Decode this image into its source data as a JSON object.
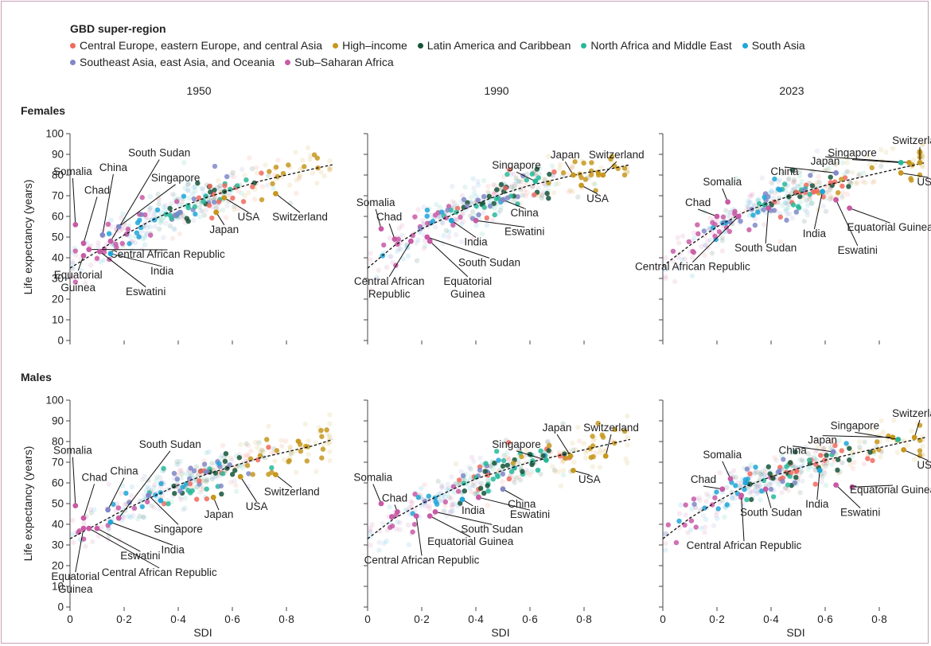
{
  "legend": {
    "title": "GBD super-region",
    "items": [
      {
        "label": "Central Europe, eastern Europe, and central Asia",
        "color": "#f06a5e"
      },
      {
        "label": "High–income",
        "color": "#c6981e"
      },
      {
        "label": "Latin America and Caribbean",
        "color": "#15553a"
      },
      {
        "label": "North Africa and Middle East",
        "color": "#28b89a"
      },
      {
        "label": "South Asia",
        "color": "#1fa6d8"
      },
      {
        "label": "Southeast Asia, east Asia, and Oceania",
        "color": "#8088c8"
      },
      {
        "label": "Sub–Saharan Africa",
        "color": "#c85aa6"
      }
    ]
  },
  "column_titles": [
    "1950",
    "1990",
    "2023"
  ],
  "row_titles": [
    "Females",
    "Males"
  ],
  "ylabel": "Life expectancy (years)",
  "xlabel": "SDI",
  "chart_data": {
    "type": "scatter",
    "xlim": [
      0,
      1
    ],
    "ylim": [
      0,
      100
    ],
    "x_ticks": [
      "0",
      "0·2",
      "0·4",
      "0·6",
      "0·8"
    ],
    "y_ticks": [
      "0",
      "10",
      "20",
      "30",
      "40",
      "50",
      "60",
      "70",
      "80",
      "90",
      "100"
    ],
    "panels": [
      {
        "sex": "Females",
        "year": "1950",
        "trend": [
          [
            0,
            35
          ],
          [
            0.1,
            43
          ],
          [
            0.2,
            51
          ],
          [
            0.3,
            58
          ],
          [
            0.4,
            64
          ],
          [
            0.5,
            69
          ],
          [
            0.6,
            73
          ],
          [
            0.7,
            77
          ],
          [
            0.8,
            80
          ],
          [
            0.9,
            83
          ],
          [
            0.97,
            85
          ]
        ],
        "points": [
          {
            "label": "Somalia",
            "x": 0.02,
            "y": 56,
            "r": 6,
            "lx": 0.01,
            "ly": 80
          },
          {
            "label": "Chad",
            "x": 0.05,
            "y": 47,
            "r": 6,
            "lx": 0.1,
            "ly": 71
          },
          {
            "label": "China",
            "x": 0.12,
            "y": 51,
            "r": 5,
            "lx": 0.16,
            "ly": 82
          },
          {
            "label": "South Sudan",
            "x": 0.15,
            "y": 48,
            "r": 6,
            "lx": 0.33,
            "ly": 89
          },
          {
            "label": "Singapore",
            "x": 0.18,
            "y": 55,
            "r": 5,
            "lx": 0.39,
            "ly": 77
          },
          {
            "label": "USA",
            "x": 0.57,
            "y": 69,
            "r": 1,
            "lx": 0.66,
            "ly": 58
          },
          {
            "label": "Switzerland",
            "x": 0.76,
            "y": 71,
            "r": 1,
            "lx": 0.85,
            "ly": 58
          },
          {
            "label": "Japan",
            "x": 0.54,
            "y": 62,
            "r": 1,
            "lx": 0.57,
            "ly": 52
          },
          {
            "label": "Central African Republic",
            "x": 0.07,
            "y": 44,
            "r": 6,
            "lx": 0.36,
            "ly": 40
          },
          {
            "label": "India",
            "x": 0.15,
            "y": 42,
            "r": 4,
            "lx": 0.34,
            "ly": 32
          },
          {
            "label": "Eswatini",
            "x": 0.11,
            "y": 43,
            "r": 6,
            "lx": 0.28,
            "ly": 22
          },
          {
            "label": "Equatorial Guinea",
            "x": 0.05,
            "y": 41,
            "r": 6,
            "lx": 0.03,
            "ly": 30
          }
        ]
      },
      {
        "sex": "Females",
        "year": "1990",
        "trend": [
          [
            0,
            35
          ],
          [
            0.1,
            46
          ],
          [
            0.2,
            54
          ],
          [
            0.3,
            60
          ],
          [
            0.4,
            66
          ],
          [
            0.5,
            71
          ],
          [
            0.6,
            75
          ],
          [
            0.7,
            78
          ],
          [
            0.8,
            81
          ],
          [
            0.9,
            83
          ],
          [
            0.97,
            85
          ]
        ],
        "points": [
          {
            "label": "Somalia",
            "x": 0.05,
            "y": 54,
            "r": 6,
            "lx": 0.03,
            "ly": 65
          },
          {
            "label": "Chad",
            "x": 0.1,
            "y": 49,
            "r": 6,
            "lx": 0.08,
            "ly": 58
          },
          {
            "label": "Singapore",
            "x": 0.62,
            "y": 77,
            "r": 3,
            "lx": 0.55,
            "ly": 83
          },
          {
            "label": "Japan",
            "x": 0.76,
            "y": 80,
            "r": 1,
            "lx": 0.73,
            "ly": 88
          },
          {
            "label": "Switzerland",
            "x": 0.87,
            "y": 80,
            "r": 1,
            "lx": 0.92,
            "ly": 88
          },
          {
            "label": "USA",
            "x": 0.79,
            "y": 75,
            "r": 1,
            "lx": 0.85,
            "ly": 67
          },
          {
            "label": "China",
            "x": 0.5,
            "y": 68,
            "r": 5,
            "lx": 0.58,
            "ly": 60
          },
          {
            "label": "Eswatini",
            "x": 0.4,
            "y": 58,
            "r": 6,
            "lx": 0.58,
            "ly": 51
          },
          {
            "label": "India",
            "x": 0.31,
            "y": 58,
            "r": 4,
            "lx": 0.4,
            "ly": 46
          },
          {
            "label": "South Sudan",
            "x": 0.22,
            "y": 50,
            "r": 6,
            "lx": 0.45,
            "ly": 36
          },
          {
            "label": "Central African Republic",
            "x": 0.16,
            "y": 48,
            "r": 6,
            "lx": 0.08,
            "ly": 27
          },
          {
            "label": "Equatorial Guinea",
            "x": 0.23,
            "y": 48,
            "r": 6,
            "lx": 0.37,
            "ly": 27
          }
        ]
      },
      {
        "sex": "Females",
        "year": "2023",
        "trend": [
          [
            0,
            36
          ],
          [
            0.1,
            46
          ],
          [
            0.2,
            55
          ],
          [
            0.3,
            62
          ],
          [
            0.4,
            67
          ],
          [
            0.5,
            71
          ],
          [
            0.6,
            75
          ],
          [
            0.7,
            78
          ],
          [
            0.8,
            81
          ],
          [
            0.9,
            84
          ],
          [
            0.97,
            86
          ]
        ],
        "points": [
          {
            "label": "Somalia",
            "x": 0.24,
            "y": 67,
            "r": 6,
            "lx": 0.22,
            "ly": 75
          },
          {
            "label": "Chad",
            "x": 0.2,
            "y": 60,
            "r": 6,
            "lx": 0.13,
            "ly": 65
          },
          {
            "label": "China",
            "x": 0.64,
            "y": 81,
            "r": 5,
            "lx": 0.45,
            "ly": 80
          },
          {
            "label": "Japan",
            "x": 0.91,
            "y": 86,
            "r": 1,
            "lx": 0.6,
            "ly": 85
          },
          {
            "label": "Singapore",
            "x": 0.88,
            "y": 86,
            "r": 3,
            "lx": 0.7,
            "ly": 89
          },
          {
            "label": "Switzerland",
            "x": 0.95,
            "y": 86,
            "r": 1,
            "lx": 0.95,
            "ly": 95
          },
          {
            "label": "USA",
            "x": 0.88,
            "y": 81,
            "r": 1,
            "lx": 0.98,
            "ly": 75
          },
          {
            "label": "India",
            "x": 0.59,
            "y": 72,
            "r": 4,
            "lx": 0.56,
            "ly": 50
          },
          {
            "label": "Equatorial Guinea",
            "x": 0.69,
            "y": 64,
            "r": 6,
            "lx": 0.84,
            "ly": 53
          },
          {
            "label": "Eswatini",
            "x": 0.64,
            "y": 68,
            "r": 6,
            "lx": 0.72,
            "ly": 42
          },
          {
            "label": "South Sudan",
            "x": 0.39,
            "y": 64,
            "r": 6,
            "lx": 0.38,
            "ly": 43
          },
          {
            "label": "Central African Republic",
            "x": 0.28,
            "y": 60,
            "r": 6,
            "lx": 0.11,
            "ly": 34
          }
        ]
      },
      {
        "sex": "Males",
        "year": "1950",
        "trend": [
          [
            0,
            33
          ],
          [
            0.1,
            40
          ],
          [
            0.2,
            47
          ],
          [
            0.3,
            53
          ],
          [
            0.4,
            59
          ],
          [
            0.5,
            64
          ],
          [
            0.6,
            68
          ],
          [
            0.7,
            72
          ],
          [
            0.8,
            75
          ],
          [
            0.9,
            78
          ],
          [
            0.97,
            81
          ]
        ],
        "points": [
          {
            "label": "Somalia",
            "x": 0.02,
            "y": 49,
            "r": 6,
            "lx": 0.01,
            "ly": 74
          },
          {
            "label": "Chad",
            "x": 0.05,
            "y": 43,
            "r": 6,
            "lx": 0.09,
            "ly": 61
          },
          {
            "label": "South Sudan",
            "x": 0.18,
            "y": 43,
            "r": 6,
            "lx": 0.37,
            "ly": 77
          },
          {
            "label": "China",
            "x": 0.14,
            "y": 47,
            "r": 5,
            "lx": 0.2,
            "ly": 64
          },
          {
            "label": "Switzerland",
            "x": 0.76,
            "y": 64,
            "r": 1,
            "lx": 0.82,
            "ly": 54
          },
          {
            "label": "USA",
            "x": 0.63,
            "y": 63,
            "r": 1,
            "lx": 0.69,
            "ly": 47
          },
          {
            "label": "Japan",
            "x": 0.53,
            "y": 53,
            "r": 1,
            "lx": 0.55,
            "ly": 43
          },
          {
            "label": "Singapore",
            "x": 0.29,
            "y": 54,
            "r": 5,
            "lx": 0.4,
            "ly": 36
          },
          {
            "label": "India",
            "x": 0.15,
            "y": 41,
            "r": 4,
            "lx": 0.38,
            "ly": 26
          },
          {
            "label": "Eswatini",
            "x": 0.1,
            "y": 38,
            "r": 6,
            "lx": 0.26,
            "ly": 23
          },
          {
            "label": "Central African Republic",
            "x": 0.07,
            "y": 38,
            "r": 6,
            "lx": 0.33,
            "ly": 15
          },
          {
            "label": "Equatorial Guinea",
            "x": 0.05,
            "y": 38,
            "r": 6,
            "lx": 0.02,
            "ly": 13
          }
        ]
      },
      {
        "sex": "Males",
        "year": "1990",
        "trend": [
          [
            0,
            33
          ],
          [
            0.1,
            43
          ],
          [
            0.2,
            50
          ],
          [
            0.3,
            56
          ],
          [
            0.4,
            62
          ],
          [
            0.5,
            66
          ],
          [
            0.6,
            70
          ],
          [
            0.7,
            73
          ],
          [
            0.8,
            76
          ],
          [
            0.9,
            79
          ],
          [
            0.97,
            81
          ]
        ],
        "points": [
          {
            "label": "Somalia",
            "x": 0.05,
            "y": 50,
            "r": 6,
            "lx": 0.02,
            "ly": 61
          },
          {
            "label": "Chad",
            "x": 0.11,
            "y": 46,
            "r": 6,
            "lx": 0.1,
            "ly": 51
          },
          {
            "label": "Singapore",
            "x": 0.66,
            "y": 71,
            "r": 3,
            "lx": 0.55,
            "ly": 77
          },
          {
            "label": "Japan",
            "x": 0.75,
            "y": 73,
            "r": 1,
            "lx": 0.7,
            "ly": 85
          },
          {
            "label": "Switzerland",
            "x": 0.88,
            "y": 73,
            "r": 1,
            "lx": 0.9,
            "ly": 85
          },
          {
            "label": "USA",
            "x": 0.76,
            "y": 66,
            "r": 1,
            "lx": 0.82,
            "ly": 60
          },
          {
            "label": "China",
            "x": 0.5,
            "y": 57,
            "r": 5,
            "lx": 0.57,
            "ly": 48
          },
          {
            "label": "Eswatini",
            "x": 0.41,
            "y": 53,
            "r": 6,
            "lx": 0.6,
            "ly": 43
          },
          {
            "label": "India",
            "x": 0.35,
            "y": 52,
            "r": 4,
            "lx": 0.39,
            "ly": 45
          },
          {
            "label": "South Sudan",
            "x": 0.25,
            "y": 46,
            "r": 6,
            "lx": 0.46,
            "ly": 36
          },
          {
            "label": "Equatorial Guinea",
            "x": 0.23,
            "y": 44,
            "r": 6,
            "lx": 0.38,
            "ly": 30
          },
          {
            "label": "Central African Republic",
            "x": 0.18,
            "y": 44,
            "r": 6,
            "lx": 0.2,
            "ly": 21
          }
        ]
      },
      {
        "sex": "Males",
        "year": "2023",
        "trend": [
          [
            0,
            33
          ],
          [
            0.1,
            43
          ],
          [
            0.2,
            51
          ],
          [
            0.3,
            58
          ],
          [
            0.4,
            63
          ],
          [
            0.5,
            67
          ],
          [
            0.6,
            71
          ],
          [
            0.7,
            74
          ],
          [
            0.8,
            77
          ],
          [
            0.9,
            80
          ],
          [
            0.97,
            82
          ]
        ],
        "points": [
          {
            "label": "Somalia",
            "x": 0.25,
            "y": 62,
            "r": 6,
            "lx": 0.22,
            "ly": 72
          },
          {
            "label": "Chad",
            "x": 0.22,
            "y": 57,
            "r": 6,
            "lx": 0.15,
            "ly": 60
          },
          {
            "label": "China",
            "x": 0.63,
            "y": 75,
            "r": 5,
            "lx": 0.48,
            "ly": 74
          },
          {
            "label": "Japan",
            "x": 0.85,
            "y": 82,
            "r": 1,
            "lx": 0.59,
            "ly": 79
          },
          {
            "label": "Singapore",
            "x": 0.87,
            "y": 81,
            "r": 3,
            "lx": 0.71,
            "ly": 86
          },
          {
            "label": "Switzerland",
            "x": 0.93,
            "y": 82,
            "r": 1,
            "lx": 0.95,
            "ly": 92
          },
          {
            "label": "USA",
            "x": 0.89,
            "y": 76,
            "r": 1,
            "lx": 0.98,
            "ly": 67
          },
          {
            "label": "India",
            "x": 0.58,
            "y": 66,
            "r": 4,
            "lx": 0.57,
            "ly": 48
          },
          {
            "label": "Equatorial Guinea",
            "x": 0.7,
            "y": 58,
            "r": 6,
            "lx": 0.85,
            "ly": 55
          },
          {
            "label": "Eswatini",
            "x": 0.64,
            "y": 59,
            "r": 6,
            "lx": 0.73,
            "ly": 44
          },
          {
            "label": "South Sudan",
            "x": 0.38,
            "y": 57,
            "r": 6,
            "lx": 0.4,
            "ly": 44
          },
          {
            "label": "Central African Republic",
            "x": 0.29,
            "y": 54,
            "r": 6,
            "lx": 0.3,
            "ly": 28
          }
        ]
      }
    ]
  }
}
